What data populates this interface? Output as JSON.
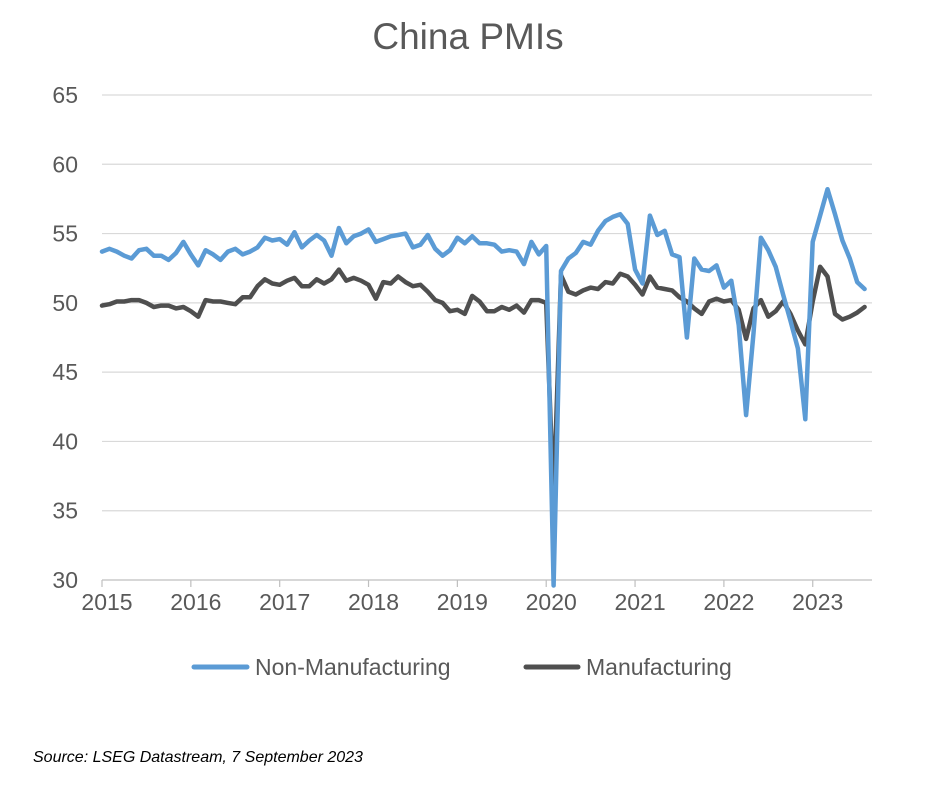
{
  "chart_data": {
    "type": "line",
    "title": "China PMIs",
    "xlabel": "",
    "ylabel": "",
    "xlim": [
      2015.0,
      2023.667
    ],
    "ylim": [
      30,
      65
    ],
    "x_ticks": [
      "2015",
      "2016",
      "2017",
      "2018",
      "2019",
      "2020",
      "2021",
      "2022",
      "2023"
    ],
    "y_ticks": [
      "30",
      "35",
      "40",
      "45",
      "50",
      "55",
      "60",
      "65"
    ],
    "grid": "horizontal",
    "legend": "bottom",
    "start": "2015-01",
    "frequency": "monthly",
    "series": [
      {
        "name": "Non-Manufacturing",
        "color": "#5B9BD5",
        "values": [
          53.7,
          53.9,
          53.7,
          53.4,
          53.2,
          53.8,
          53.9,
          53.4,
          53.4,
          53.1,
          53.6,
          54.4,
          53.5,
          52.7,
          53.8,
          53.5,
          53.1,
          53.7,
          53.9,
          53.5,
          53.7,
          54.0,
          54.7,
          54.5,
          54.6,
          54.2,
          55.1,
          54.0,
          54.5,
          54.9,
          54.5,
          53.4,
          55.4,
          54.3,
          54.8,
          55.0,
          55.3,
          54.4,
          54.6,
          54.8,
          54.9,
          55.0,
          54.0,
          54.2,
          54.9,
          53.9,
          53.4,
          53.8,
          54.7,
          54.3,
          54.8,
          54.3,
          54.3,
          54.2,
          53.7,
          53.8,
          53.7,
          52.8,
          54.4,
          53.5,
          54.1,
          29.6,
          52.3,
          53.2,
          53.6,
          54.4,
          54.2,
          55.2,
          55.9,
          56.2,
          56.4,
          55.7,
          52.4,
          51.4,
          56.3,
          54.9,
          55.2,
          53.5,
          53.3,
          47.5,
          53.2,
          52.4,
          52.3,
          52.7,
          51.1,
          51.6,
          48.4,
          41.9,
          47.8,
          54.7,
          53.8,
          52.6,
          50.6,
          48.7,
          46.7,
          41.6,
          54.4,
          56.3,
          58.2,
          56.4,
          54.5,
          53.2,
          51.5,
          51.0
        ]
      },
      {
        "name": "Manufacturing",
        "color": "#4F4F4F",
        "values": [
          49.8,
          49.9,
          50.1,
          50.1,
          50.2,
          50.2,
          50.0,
          49.7,
          49.8,
          49.8,
          49.6,
          49.7,
          49.4,
          49.0,
          50.2,
          50.1,
          50.1,
          50.0,
          49.9,
          50.4,
          50.4,
          51.2,
          51.7,
          51.4,
          51.3,
          51.6,
          51.8,
          51.2,
          51.2,
          51.7,
          51.4,
          51.7,
          52.4,
          51.6,
          51.8,
          51.6,
          51.3,
          50.3,
          51.5,
          51.4,
          51.9,
          51.5,
          51.2,
          51.3,
          50.8,
          50.2,
          50.0,
          49.4,
          49.5,
          49.2,
          50.5,
          50.1,
          49.4,
          49.4,
          49.7,
          49.5,
          49.8,
          49.3,
          50.2,
          50.2,
          50.0,
          35.7,
          52.0,
          50.8,
          50.6,
          50.9,
          51.1,
          51.0,
          51.5,
          51.4,
          52.1,
          51.9,
          51.3,
          50.6,
          51.9,
          51.1,
          51.0,
          50.9,
          50.4,
          50.1,
          49.6,
          49.2,
          50.1,
          50.3,
          50.1,
          50.2,
          49.5,
          47.4,
          49.6,
          50.2,
          49.0,
          49.4,
          50.1,
          49.2,
          48.0,
          47.0,
          50.1,
          52.6,
          51.9,
          49.2,
          48.8,
          49.0,
          49.3,
          49.7
        ]
      }
    ]
  },
  "source": "Source: LSEG Datastream, 7 September 2023"
}
